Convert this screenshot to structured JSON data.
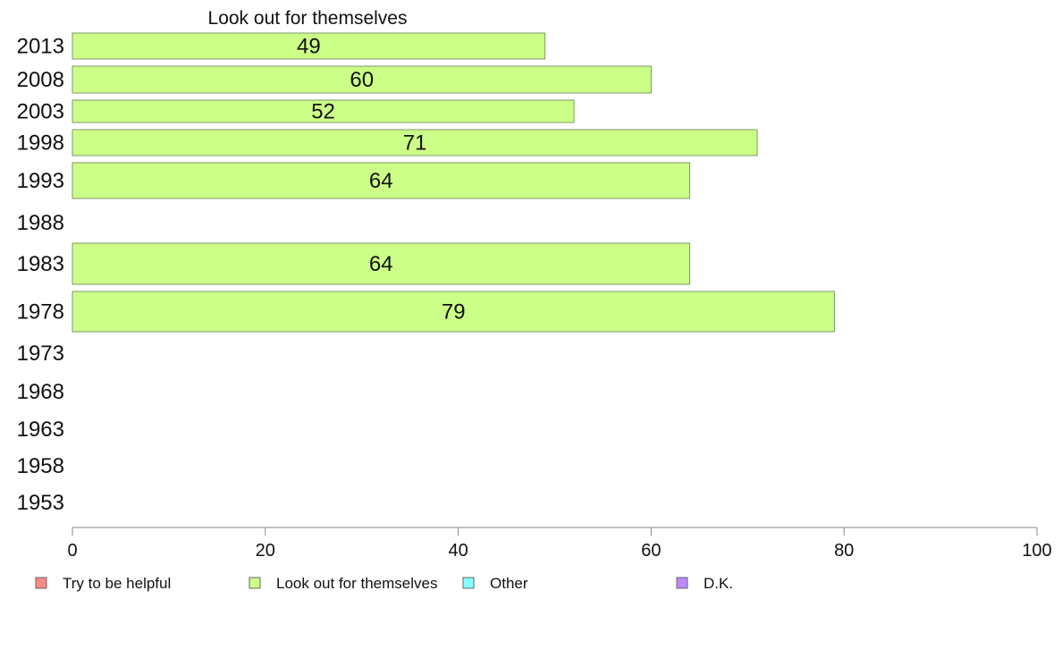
{
  "chart_data": {
    "type": "bar",
    "orientation": "horizontal",
    "title": "Look out for themselves",
    "categories": [
      "2013",
      "2008",
      "2003",
      "1998",
      "1993",
      "1988",
      "1983",
      "1978",
      "1973",
      "1968",
      "1963",
      "1958",
      "1953"
    ],
    "series": [
      {
        "name": "Look out for themselves",
        "color": "#ccff88",
        "values": [
          49,
          60,
          52,
          71,
          64,
          null,
          64,
          79,
          null,
          null,
          null,
          null,
          null
        ]
      }
    ],
    "value_labels": [
      "49",
      "60",
      "52",
      "71",
      "64",
      "",
      "64",
      "79",
      "",
      "",
      "",
      "",
      ""
    ],
    "xlim": [
      0,
      100
    ],
    "xticks": [
      "0",
      "20",
      "40",
      "60",
      "80",
      "100"
    ],
    "grid": false,
    "legend": {
      "placement": "bottom",
      "items": [
        {
          "label": "Try to be helpful",
          "color": "#ff8888"
        },
        {
          "label": "Look out for themselves",
          "color": "#ccff88"
        },
        {
          "label": "Other",
          "color": "#88ffff"
        },
        {
          "label": "D.K.",
          "color": "#bb88ff"
        }
      ]
    }
  }
}
